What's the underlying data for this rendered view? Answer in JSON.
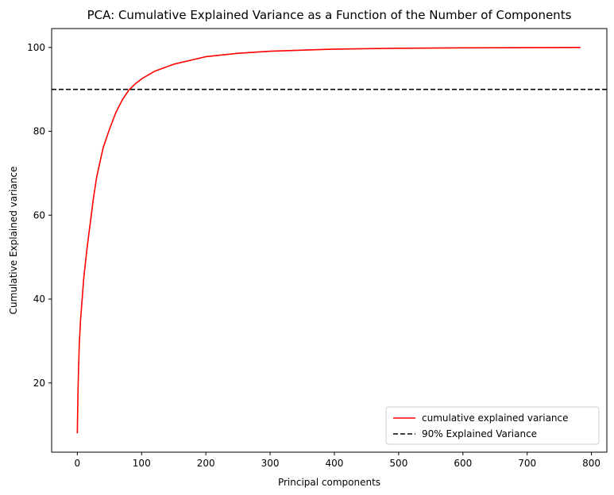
{
  "chart_data": {
    "type": "line",
    "title": "PCA: Cumulative Explained Variance as a Function of the Number of Components",
    "xlabel": "Principal components",
    "ylabel": "Cumulative Explained variance",
    "xlim": [
      -40,
      824
    ],
    "ylim": [
      3.5,
      104.5
    ],
    "xticks": [
      0,
      100,
      200,
      300,
      400,
      500,
      600,
      700,
      800
    ],
    "yticks": [
      20,
      40,
      60,
      80,
      100
    ],
    "grid": false,
    "legend_position": "lower-right",
    "series": [
      {
        "name": "cumulative explained variance",
        "color": "#ff0000",
        "style": "solid",
        "x": [
          0,
          1,
          2,
          3,
          5,
          8,
          10,
          15,
          20,
          25,
          30,
          40,
          50,
          60,
          70,
          80,
          90,
          100,
          120,
          150,
          200,
          250,
          300,
          400,
          500,
          600,
          700,
          783
        ],
        "y": [
          8,
          18,
          24,
          29,
          35,
          41,
          45,
          52,
          58,
          64,
          69,
          76,
          80.5,
          84.5,
          87.5,
          89.8,
          91.3,
          92.5,
          94.3,
          96,
          97.8,
          98.6,
          99.1,
          99.6,
          99.8,
          99.9,
          99.95,
          100
        ]
      },
      {
        "name": "90% Explained Variance",
        "color": "#000000",
        "style": "dashed",
        "hline": 90
      }
    ]
  }
}
